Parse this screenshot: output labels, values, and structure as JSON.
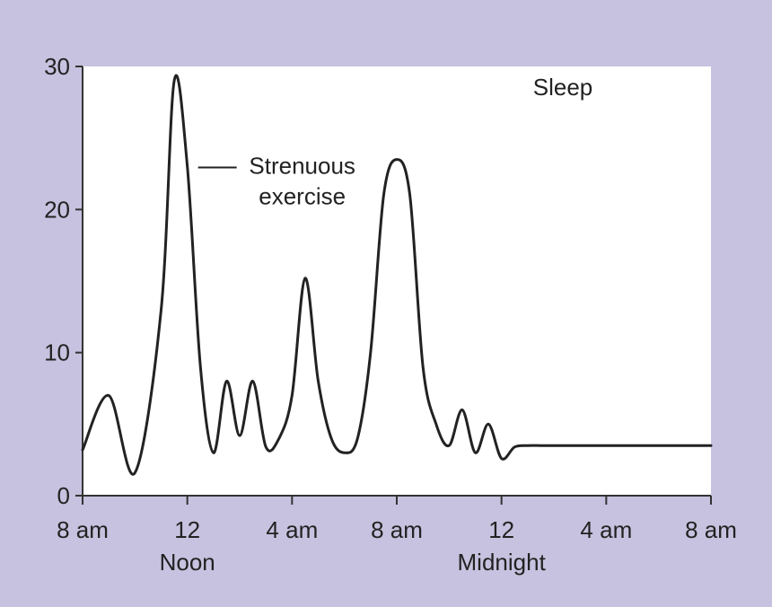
{
  "chart_data": {
    "type": "line",
    "title": "",
    "xlabel": "",
    "ylabel": "",
    "x_hours": [
      0,
      1,
      2,
      3,
      3.5,
      4,
      4.5,
      5,
      5.5,
      6,
      6.5,
      7,
      7.5,
      8,
      8.5,
      9,
      9.5,
      10,
      10.5,
      11,
      11.5,
      12,
      12.5,
      13,
      13.5,
      14,
      14.5,
      15,
      15.5,
      16,
      16.5,
      17,
      17.5,
      18,
      18.5,
      19,
      19.5,
      20,
      20.5,
      21,
      21.5,
      22,
      22.5,
      23,
      23.5,
      24
    ],
    "x_tick_hours": [
      0,
      4,
      8,
      12,
      16,
      20,
      24
    ],
    "x_tick_labels": [
      "8 am",
      "12",
      "4 am",
      "8 am",
      "12",
      "4 am",
      "8 am"
    ],
    "x_sub_labels": [
      {
        "hour": 4,
        "text": "Noon"
      },
      {
        "hour": 16,
        "text": "Midnight"
      }
    ],
    "series": [
      {
        "values": [
          3.2,
          7,
          1.6,
          13,
          29,
          23,
          9,
          3,
          8,
          4.2,
          8,
          3.4,
          4,
          7,
          15.2,
          8,
          4,
          3,
          4,
          10,
          21,
          23.5,
          21,
          9,
          5,
          3.5,
          6,
          3,
          5,
          2.6,
          3.4,
          3.5,
          3.5,
          3.5,
          3.5,
          3.5,
          3.5,
          3.5,
          3.5,
          3.5,
          3.5,
          3.5,
          3.5,
          3.5,
          3.5,
          3.5
        ],
        "color": "#222222"
      }
    ],
    "y_ticks": [
      0,
      10,
      20,
      30
    ],
    "ylim": [
      0,
      30
    ],
    "xlim": [
      0,
      24
    ],
    "grid": false,
    "annotations": [
      {
        "text_lines": [
          "Strenuous",
          "exercise"
        ],
        "hour": 4,
        "value": 22.5
      },
      {
        "text_lines": [
          "Sleep"
        ],
        "hour": 18,
        "value": 28
      }
    ]
  }
}
